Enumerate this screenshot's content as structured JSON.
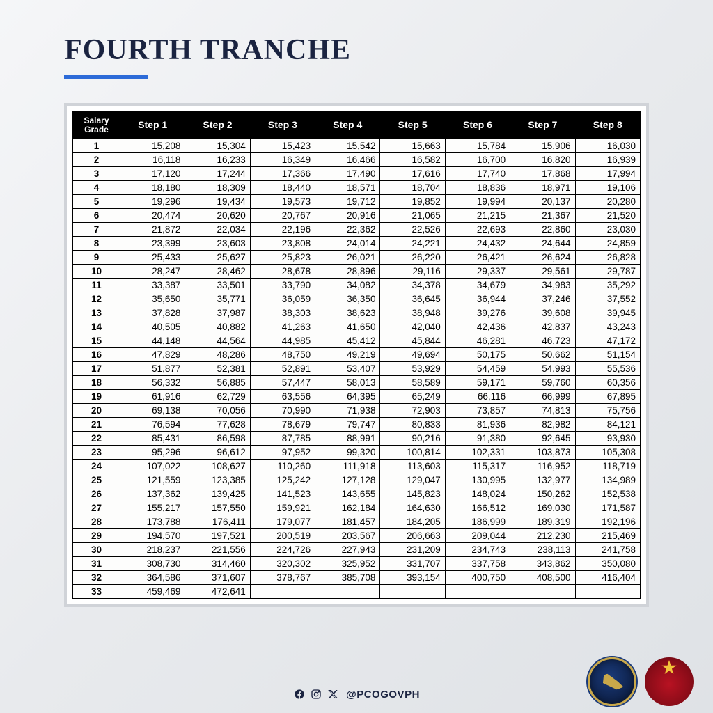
{
  "title": "FOURTH TRANCHE",
  "title_color": "#1a2340",
  "underline_color": "#2d6bd8",
  "table": {
    "header_bg": "#000000",
    "header_color": "#ffffff",
    "columns": [
      "Salary\nGrade",
      "Step 1",
      "Step 2",
      "Step 3",
      "Step 4",
      "Step 5",
      "Step 6",
      "Step 7",
      "Step 8"
    ],
    "rows": [
      [
        "1",
        "15,208",
        "15,304",
        "15,423",
        "15,542",
        "15,663",
        "15,784",
        "15,906",
        "16,030"
      ],
      [
        "2",
        "16,118",
        "16,233",
        "16,349",
        "16,466",
        "16,582",
        "16,700",
        "16,820",
        "16,939"
      ],
      [
        "3",
        "17,120",
        "17,244",
        "17,366",
        "17,490",
        "17,616",
        "17,740",
        "17,868",
        "17,994"
      ],
      [
        "4",
        "18,180",
        "18,309",
        "18,440",
        "18,571",
        "18,704",
        "18,836",
        "18,971",
        "19,106"
      ],
      [
        "5",
        "19,296",
        "19,434",
        "19,573",
        "19,712",
        "19,852",
        "19,994",
        "20,137",
        "20,280"
      ],
      [
        "6",
        "20,474",
        "20,620",
        "20,767",
        "20,916",
        "21,065",
        "21,215",
        "21,367",
        "21,520"
      ],
      [
        "7",
        "21,872",
        "22,034",
        "22,196",
        "22,362",
        "22,526",
        "22,693",
        "22,860",
        "23,030"
      ],
      [
        "8",
        "23,399",
        "23,603",
        "23,808",
        "24,014",
        "24,221",
        "24,432",
        "24,644",
        "24,859"
      ],
      [
        "9",
        "25,433",
        "25,627",
        "25,823",
        "26,021",
        "26,220",
        "26,421",
        "26,624",
        "26,828"
      ],
      [
        "10",
        "28,247",
        "28,462",
        "28,678",
        "28,896",
        "29,116",
        "29,337",
        "29,561",
        "29,787"
      ],
      [
        "11",
        "33,387",
        "33,501",
        "33,790",
        "34,082",
        "34,378",
        "34,679",
        "34,983",
        "35,292"
      ],
      [
        "12",
        "35,650",
        "35,771",
        "36,059",
        "36,350",
        "36,645",
        "36,944",
        "37,246",
        "37,552"
      ],
      [
        "13",
        "37,828",
        "37,987",
        "38,303",
        "38,623",
        "38,948",
        "39,276",
        "39,608",
        "39,945"
      ],
      [
        "14",
        "40,505",
        "40,882",
        "41,263",
        "41,650",
        "42,040",
        "42,436",
        "42,837",
        "43,243"
      ],
      [
        "15",
        "44,148",
        "44,564",
        "44,985",
        "45,412",
        "45,844",
        "46,281",
        "46,723",
        "47,172"
      ],
      [
        "16",
        "47,829",
        "48,286",
        "48,750",
        "49,219",
        "49,694",
        "50,175",
        "50,662",
        "51,154"
      ],
      [
        "17",
        "51,877",
        "52,381",
        "52,891",
        "53,407",
        "53,929",
        "54,459",
        "54,993",
        "55,536"
      ],
      [
        "18",
        "56,332",
        "56,885",
        "57,447",
        "58,013",
        "58,589",
        "59,171",
        "59,760",
        "60,356"
      ],
      [
        "19",
        "61,916",
        "62,729",
        "63,556",
        "64,395",
        "65,249",
        "66,116",
        "66,999",
        "67,895"
      ],
      [
        "20",
        "69,138",
        "70,056",
        "70,990",
        "71,938",
        "72,903",
        "73,857",
        "74,813",
        "75,756"
      ],
      [
        "21",
        "76,594",
        "77,628",
        "78,679",
        "79,747",
        "80,833",
        "81,936",
        "82,982",
        "84,121"
      ],
      [
        "22",
        "85,431",
        "86,598",
        "87,785",
        "88,991",
        "90,216",
        "91,380",
        "92,645",
        "93,930"
      ],
      [
        "23",
        "95,296",
        "96,612",
        "97,952",
        "99,320",
        "100,814",
        "102,331",
        "103,873",
        "105,308"
      ],
      [
        "24",
        "107,022",
        "108,627",
        "110,260",
        "111,918",
        "113,603",
        "115,317",
        "116,952",
        "118,719"
      ],
      [
        "25",
        "121,559",
        "123,385",
        "125,242",
        "127,128",
        "129,047",
        "130,995",
        "132,977",
        "134,989"
      ],
      [
        "26",
        "137,362",
        "139,425",
        "141,523",
        "143,655",
        "145,823",
        "148,024",
        "150,262",
        "152,538"
      ],
      [
        "27",
        "155,217",
        "157,550",
        "159,921",
        "162,184",
        "164,630",
        "166,512",
        "169,030",
        "171,587"
      ],
      [
        "28",
        "173,788",
        "176,411",
        "179,077",
        "181,457",
        "184,205",
        "186,999",
        "189,319",
        "192,196"
      ],
      [
        "29",
        "194,570",
        "197,521",
        "200,519",
        "203,567",
        "206,663",
        "209,044",
        "212,230",
        "215,469"
      ],
      [
        "30",
        "218,237",
        "221,556",
        "224,726",
        "227,943",
        "231,209",
        "234,743",
        "238,113",
        "241,758"
      ],
      [
        "31",
        "308,730",
        "314,460",
        "320,302",
        "325,952",
        "331,707",
        "337,758",
        "343,862",
        "350,080"
      ],
      [
        "32",
        "364,586",
        "371,607",
        "378,767",
        "385,708",
        "393,154",
        "400,750",
        "408,500",
        "416,404"
      ],
      [
        "33",
        "459,469",
        "472,641",
        "",
        "",
        "",
        "",
        "",
        ""
      ]
    ]
  },
  "footer": {
    "handle": "@PCOGOVPH",
    "icons": [
      "facebook",
      "instagram",
      "x"
    ]
  }
}
